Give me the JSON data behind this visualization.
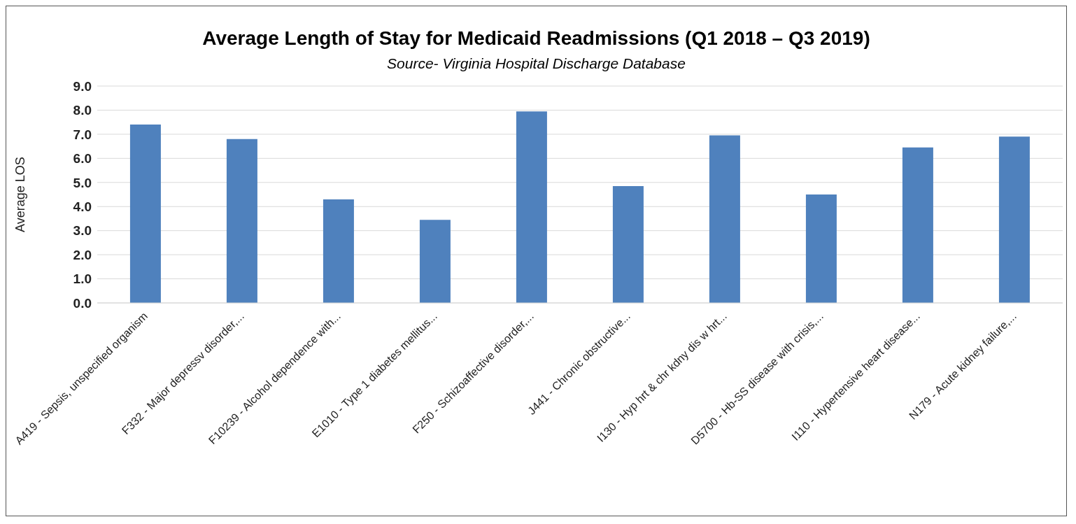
{
  "chart_data": {
    "type": "bar",
    "title": "Average Length of Stay for Medicaid Readmissions (Q1 2018 – Q3 2019)",
    "subtitle": "Source- Virginia Hospital Discharge Database",
    "ylabel": "Average LOS",
    "categories": [
      "A419 - Sepsis, unspecified organism",
      "F332 - Major depressv disorder,...",
      "F10239 - Alcohol dependence with...",
      "E1010 - Type 1 diabetes mellitus...",
      "F250 - Schizoaffective disorder,...",
      "J441 - Chronic obstructive...",
      "I130 - Hyp hrt & chr kdny dis w hrt...",
      "D5700 - Hb-SS disease with crisis,...",
      "I110 - Hypertensive heart disease...",
      "N179 - Acute kidney failure,..."
    ],
    "values": [
      7.4,
      6.8,
      4.3,
      3.45,
      7.95,
      4.85,
      6.95,
      4.5,
      6.45,
      6.9
    ],
    "color": "#4f81bd",
    "ylim": [
      0,
      9
    ],
    "yticks": [
      {
        "value": 0,
        "label": "0.0"
      },
      {
        "value": 1,
        "label": "1.0"
      },
      {
        "value": 2,
        "label": "2.0"
      },
      {
        "value": 3,
        "label": "3.0"
      },
      {
        "value": 4,
        "label": "4.0"
      },
      {
        "value": 5,
        "label": "5.0"
      },
      {
        "value": 6,
        "label": "6.0"
      },
      {
        "value": 7,
        "label": "7.0"
      },
      {
        "value": 8,
        "label": "8.0"
      },
      {
        "value": 9,
        "label": "9.0"
      }
    ],
    "grid": "y"
  }
}
